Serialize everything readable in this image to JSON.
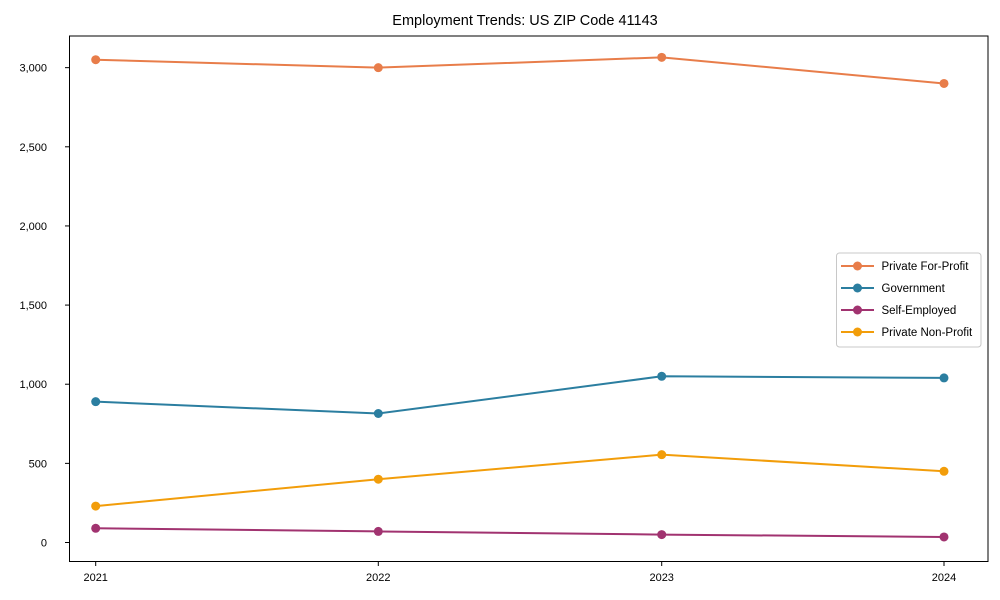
{
  "figure": {
    "background": "#ffffff",
    "axis_color": "#000000",
    "text_color": "#000000",
    "legend_border_color": "#c8c8c8"
  },
  "chart_data": {
    "type": "line",
    "title": "Employment Trends: US ZIP Code 41143",
    "x_categories": [
      "2021",
      "2022",
      "2023",
      "2024"
    ],
    "series": [
      {
        "name": "Private For-Profit",
        "color": "#e87d4a",
        "values": [
          3050,
          3000,
          3065,
          2900
        ]
      },
      {
        "name": "Government",
        "color": "#2b7ea0",
        "values": [
          890,
          815,
          1050,
          1040
        ]
      },
      {
        "name": "Self-Employed",
        "color": "#a13370",
        "values": [
          90,
          70,
          50,
          35
        ]
      },
      {
        "name": "Private Non-Profit",
        "color": "#f29d0a",
        "values": [
          230,
          400,
          555,
          450
        ]
      }
    ],
    "ylim": [
      -120,
      3200
    ],
    "yticks": [
      0,
      500,
      1000,
      1500,
      2000,
      2500,
      3000
    ],
    "ytick_labels": [
      "0",
      "500",
      "1,000",
      "1,500",
      "2,000",
      "2,500",
      "3,000"
    ],
    "grid": false,
    "marker": "circle",
    "legend_position": "center-right",
    "legend_entries": [
      "Private For-Profit",
      "Government",
      "Self-Employed",
      "Private Non-Profit"
    ]
  }
}
